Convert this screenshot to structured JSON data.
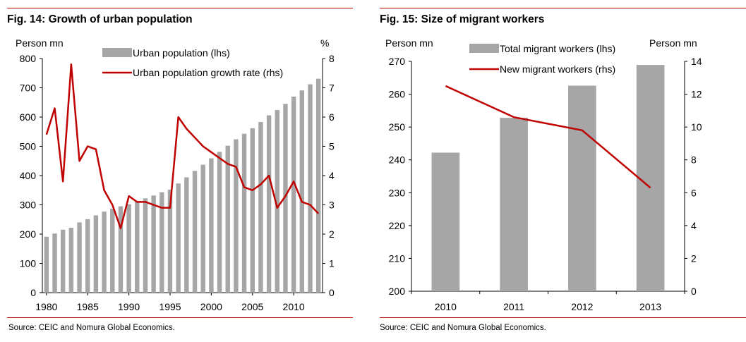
{
  "colors": {
    "accent_red": "#c00000",
    "bar_gray": "#a6a6a6",
    "line_red": "#c00000"
  },
  "left": {
    "title": "Fig. 14: Growth of urban population",
    "source": "Source: CEIC and Nomura Global Economics."
  },
  "right": {
    "title": "Fig. 15: Size of migrant workers",
    "source": "Source: CEIC and Nomura Global Economics."
  },
  "chart_data": [
    {
      "type": "bar",
      "title": "Fig. 14: Growth of urban population",
      "ylabel": "Person mn",
      "y2label": "%",
      "ylim": [
        0,
        800
      ],
      "y2lim": [
        0,
        8
      ],
      "yticks": [
        0,
        100,
        200,
        300,
        400,
        500,
        600,
        700,
        800
      ],
      "y2ticks": [
        0,
        1,
        2,
        3,
        4,
        5,
        6,
        7,
        8
      ],
      "xticks": [
        1980,
        1985,
        1990,
        1995,
        2000,
        2005,
        2010
      ],
      "legend": "top-center",
      "x": [
        1980,
        1981,
        1982,
        1983,
        1984,
        1985,
        1986,
        1987,
        1988,
        1989,
        1990,
        1991,
        1992,
        1993,
        1994,
        1995,
        1996,
        1997,
        1998,
        1999,
        2000,
        2001,
        2002,
        2003,
        2004,
        2005,
        2006,
        2007,
        2008,
        2009,
        2010,
        2011,
        2012,
        2013
      ],
      "series": [
        {
          "name": "Urban population (lhs)",
          "kind": "bar",
          "axis": "left",
          "values": [
            191,
            202,
            215,
            222,
            240,
            251,
            264,
            277,
            287,
            295,
            302,
            312,
            322,
            332,
            343,
            352,
            373,
            394,
            416,
            437,
            459,
            481,
            502,
            524,
            543,
            562,
            583,
            606,
            624,
            645,
            670,
            691,
            712,
            731
          ]
        },
        {
          "name": "Urban population growth rate (rhs)",
          "kind": "line",
          "axis": "right",
          "values": [
            5.4,
            6.3,
            3.8,
            7.8,
            4.5,
            5.0,
            4.9,
            3.5,
            3.0,
            2.2,
            3.3,
            3.1,
            3.1,
            3.0,
            2.9,
            2.9,
            6.0,
            5.6,
            5.3,
            5.0,
            4.8,
            4.6,
            4.4,
            4.3,
            3.6,
            3.5,
            3.7,
            4.0,
            2.9,
            3.3,
            3.8,
            3.1,
            3.0,
            2.7
          ]
        }
      ]
    },
    {
      "type": "bar",
      "title": "Fig. 15: Size of migrant workers",
      "ylabel": "Person mn",
      "y2label": "Person mn",
      "ylim": [
        200,
        270
      ],
      "y2lim": [
        0,
        14
      ],
      "yticks": [
        200,
        210,
        220,
        230,
        240,
        250,
        260,
        270
      ],
      "y2ticks": [
        0,
        2,
        4,
        6,
        8,
        10,
        12,
        14
      ],
      "legend": "top-center",
      "categories": [
        "2010",
        "2011",
        "2012",
        "2013"
      ],
      "series": [
        {
          "name": "Total migrant workers (lhs)",
          "kind": "bar",
          "axis": "left",
          "values": [
            242.2,
            252.8,
            262.6,
            268.9
          ]
        },
        {
          "name": "New migrant workers (rhs)",
          "kind": "line",
          "axis": "right",
          "values": [
            12.5,
            10.6,
            9.8,
            6.3
          ]
        }
      ]
    }
  ]
}
